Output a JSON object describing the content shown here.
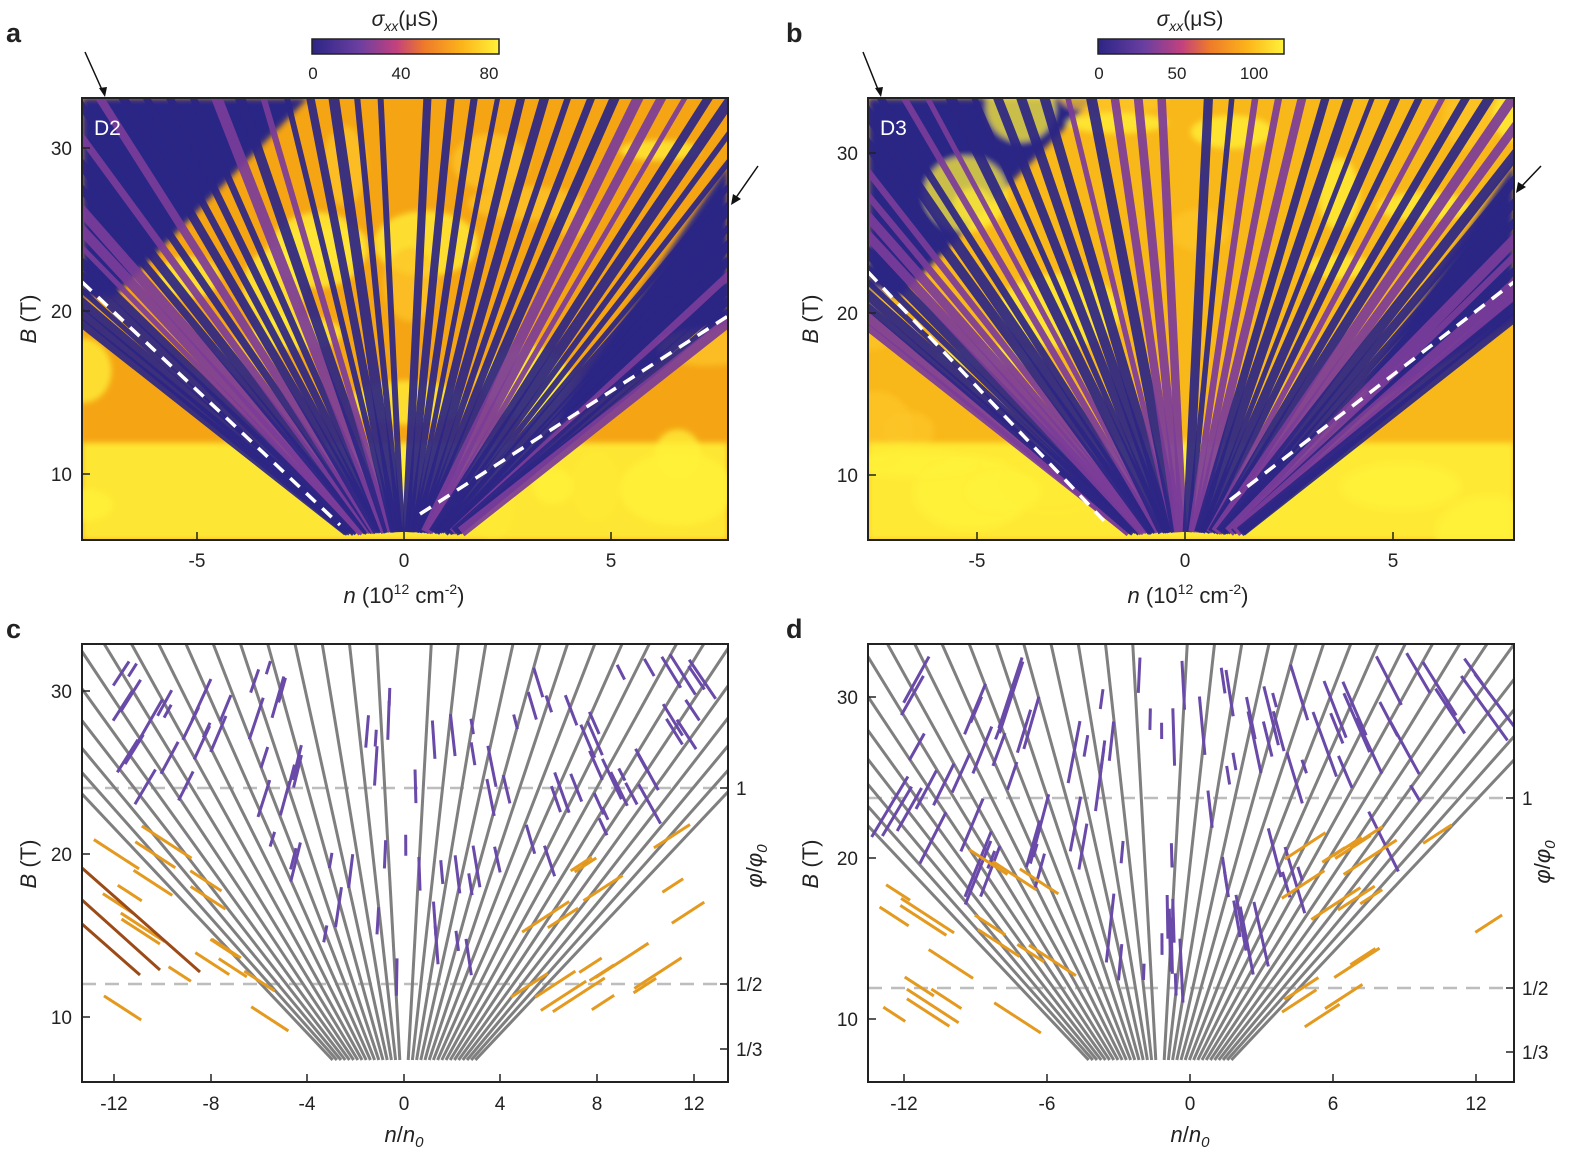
{
  "colors": {
    "gray_line": "#7f7f7f",
    "purple_line": "#6a4aa8",
    "orange_line": "#e49a1f",
    "brown_line": "#9c4a16",
    "dashed_guide": "#bdbdbd",
    "colormap_low": "#2c2585",
    "colormap_mid": "#8a3a8c",
    "colormap_high": "#fff23a"
  },
  "panels": {
    "a": {
      "label": "a",
      "device": "D2",
      "colorbar": {
        "title_sym": "σ",
        "title_sub": "xx",
        "title_unit": "(μS)",
        "ticks": [
          "0",
          "40",
          "80"
        ],
        "max": 85
      },
      "xticks": [
        "-5",
        "0",
        "5"
      ],
      "yticks": [
        "30",
        "20",
        "10"
      ],
      "xlabel_main": "n",
      "xlabel_unit": "(10",
      "xlabel_exp": "12",
      "xlabel_unit2": " cm",
      "xlabel_exp2": "-2",
      "xlabel_close": ")",
      "ylabel_main": "B",
      "ylabel_unit": " (T)"
    },
    "b": {
      "label": "b",
      "device": "D3",
      "colorbar": {
        "title_sym": "σ",
        "title_sub": "xx",
        "title_unit": "(μS)",
        "ticks": [
          "0",
          "50",
          "100"
        ],
        "max": 120
      },
      "xticks": [
        "-5",
        "0",
        "5"
      ],
      "yticks": [
        "30",
        "20",
        "10"
      ],
      "xlabel_main": "n",
      "xlabel_unit": "(10",
      "xlabel_exp": "12",
      "xlabel_unit2": " cm",
      "xlabel_exp2": "-2",
      "xlabel_close": ")",
      "ylabel_main": "B",
      "ylabel_unit": " (T)"
    },
    "c": {
      "label": "c",
      "xticks": [
        "-12",
        "-8",
        "-4",
        "0",
        "4",
        "8",
        "12"
      ],
      "yticks": [
        "30",
        "20",
        "10"
      ],
      "right_ticks": [
        "1",
        "1/2",
        "1/3"
      ],
      "xlabel_n": "n",
      "xlabel_slash": "/",
      "xlabel_n0": "n",
      "xlabel_sub": "0",
      "ylabel_main": "B",
      "ylabel_unit": " (T)",
      "right_label_phi": "φ",
      "right_label_slash": "/",
      "right_label_phi0": "φ",
      "right_label_sub": "0"
    },
    "d": {
      "label": "d",
      "xticks": [
        "-12",
        "-6",
        "0",
        "6",
        "12"
      ],
      "yticks": [
        "30",
        "20",
        "10"
      ],
      "right_ticks": [
        "1",
        "1/2",
        "1/3"
      ],
      "xlabel_n": "n",
      "xlabel_slash": "/",
      "xlabel_n0": "n",
      "xlabel_sub": "0",
      "ylabel_main": "B",
      "ylabel_unit": " (T)",
      "right_label_phi": "φ",
      "right_label_slash": "/",
      "right_label_phi0": "φ",
      "right_label_sub": "0"
    }
  }
}
